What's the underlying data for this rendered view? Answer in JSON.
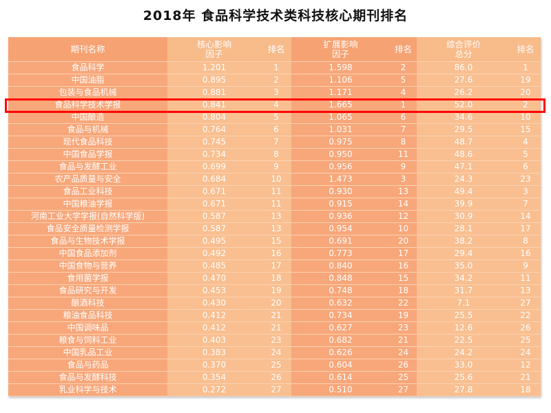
{
  "title": "2018年 食品科学技术类科技核心期刊排名",
  "headers": {
    "name": "期刊名称",
    "core_if_1": "核心影响",
    "core_if_2": "因子",
    "core_rank": "排名",
    "ext_if_1": "扩展影响",
    "ext_if_2": "因子",
    "ext_rank": "排名",
    "total_1": "综合评价",
    "total_2": "总分",
    "total_rank": "排名"
  },
  "highlighted_row": "食品科学技术学报",
  "colors": {
    "dark_column": "#f7a77a",
    "light_column": "#f9bf90",
    "highlight_border": "#ff0000"
  },
  "rows": [
    [
      "食品科学",
      "1.201",
      "1",
      "1.598",
      "2",
      "86.0",
      "1"
    ],
    [
      "中国油脂",
      "0.895",
      "2",
      "1.106",
      "5",
      "27.6",
      "19"
    ],
    [
      "包装与食品机械",
      "0.881",
      "3",
      "1.171",
      "4",
      "26.2",
      "20"
    ],
    [
      "食品科学技术学报",
      "0.841",
      "4",
      "1.665",
      "1",
      "52.0",
      "2"
    ],
    [
      "中国酿造",
      "0.804",
      "5",
      "1.065",
      "6",
      "34.6",
      "10"
    ],
    [
      "食品与机械",
      "0.764",
      "6",
      "1.031",
      "7",
      "29.5",
      "15"
    ],
    [
      "现代食品科技",
      "0.745",
      "7",
      "0.975",
      "8",
      "48.7",
      "4"
    ],
    [
      "中国食品学报",
      "0.734",
      "8",
      "0.950",
      "11",
      "48.6",
      "5"
    ],
    [
      "食品与发酵工业",
      "0.699",
      "9",
      "0.956",
      "9",
      "47.1",
      "6"
    ],
    [
      "农产品质量与安全",
      "0.684",
      "10",
      "1.473",
      "3",
      "24.3",
      "23"
    ],
    [
      "食品工业科技",
      "0.671",
      "11",
      "0.930",
      "13",
      "49.4",
      "3"
    ],
    [
      "中国粮油学报",
      "0.671",
      "11",
      "0.915",
      "14",
      "39.9",
      "7"
    ],
    [
      "河南工业大学学报(自然科学版)",
      "0.587",
      "13",
      "0.936",
      "12",
      "30.9",
      "14"
    ],
    [
      "食品安全质量检测学报",
      "0.587",
      "13",
      "0.954",
      "10",
      "28.1",
      "17"
    ],
    [
      "食品与生物技术学报",
      "0.495",
      "15",
      "0.691",
      "20",
      "38.2",
      "8"
    ],
    [
      "中国食品添加剂",
      "0.492",
      "16",
      "0.773",
      "17",
      "29.4",
      "16"
    ],
    [
      "中国食物与营养",
      "0.485",
      "17",
      "0.840",
      "16",
      "35.0",
      "9"
    ],
    [
      "食用菌学报",
      "0.470",
      "18",
      "0.848",
      "15",
      "34.2",
      "11"
    ],
    [
      "食品研究与开发",
      "0.453",
      "19",
      "0.748",
      "18",
      "31.7",
      "13"
    ],
    [
      "酿酒科技",
      "0.430",
      "20",
      "0.632",
      "22",
      "7.1",
      "27"
    ],
    [
      "粮油食品科技",
      "0.412",
      "21",
      "0.734",
      "19",
      "25.5",
      "22"
    ],
    [
      "中国调味品",
      "0.412",
      "21",
      "0.627",
      "23",
      "12.6",
      "26"
    ],
    [
      "粮食与饲料工业",
      "0.403",
      "23",
      "0.682",
      "21",
      "22.5",
      "25"
    ],
    [
      "中国乳品工业",
      "0.383",
      "24",
      "0.626",
      "24",
      "24.2",
      "24"
    ],
    [
      "食品与药品",
      "0.370",
      "25",
      "0.604",
      "26",
      "33.0",
      "12"
    ],
    [
      "食品与发酵科技",
      "0.354",
      "26",
      "0.614",
      "25",
      "25.6",
      "21"
    ],
    [
      "乳业科学与技术",
      "0.272",
      "27",
      "0.510",
      "27",
      "27.8",
      "18"
    ]
  ]
}
